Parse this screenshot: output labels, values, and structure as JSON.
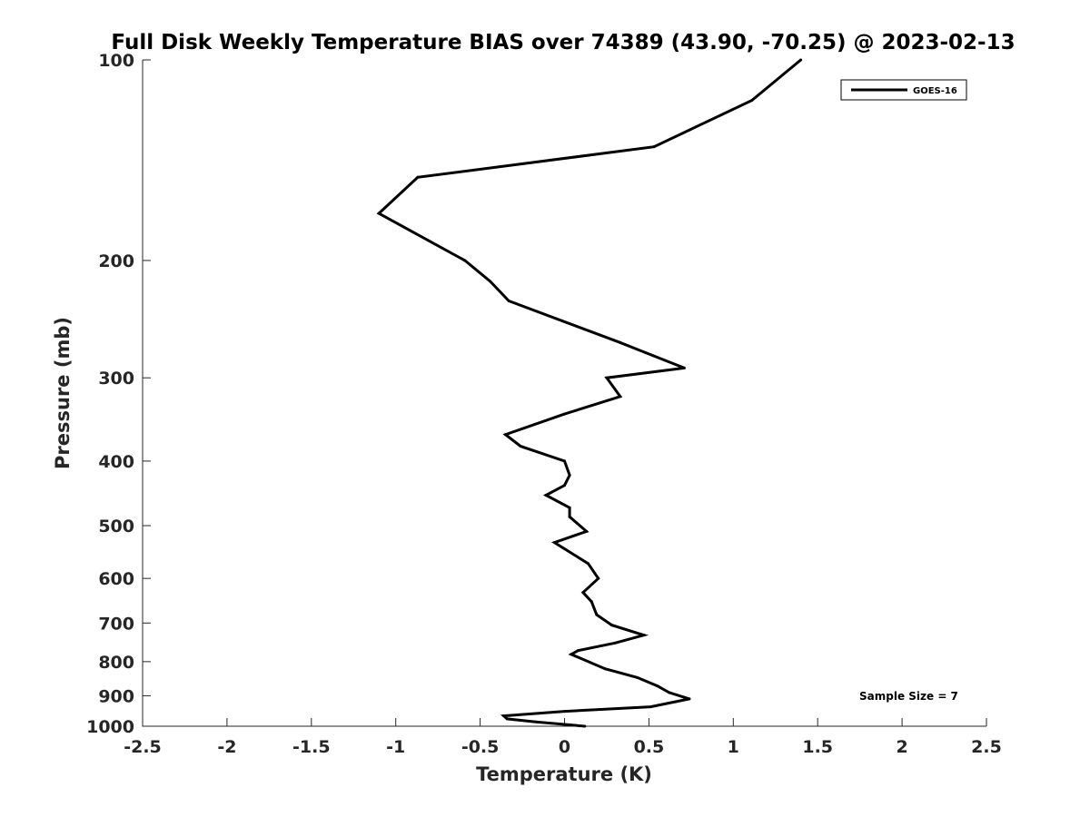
{
  "chart_data": {
    "type": "line",
    "title": "Full Disk Weekly Temperature BIAS over 74389 (43.90, -70.25) @ 2023-02-13",
    "xlabel": "Temperature (K)",
    "ylabel": "Pressure (mb)",
    "xlim": [
      -2.5,
      2.5
    ],
    "ylim": [
      100,
      1000
    ],
    "y_scale": "log",
    "y_reversed": true,
    "xticks": [
      -2.5,
      -2,
      -1.5,
      -1,
      -0.5,
      0,
      0.5,
      1,
      1.5,
      2,
      2.5
    ],
    "xtick_labels": [
      "-2.5",
      "-2",
      "-1.5",
      "-1",
      "-0.5",
      "0",
      "0.5",
      "1",
      "1.5",
      "2",
      "2.5"
    ],
    "yticks": [
      100,
      200,
      300,
      400,
      500,
      600,
      700,
      800,
      900,
      1000
    ],
    "ytick_labels": [
      "100",
      "200",
      "300",
      "400",
      "500",
      "600",
      "700",
      "800",
      "900",
      "1000"
    ],
    "grid": false,
    "legend_position": "top-right",
    "annotation": "Sample Size = 7",
    "series": [
      {
        "name": "GOES-16",
        "color": "#000000",
        "points": [
          {
            "x": 1.4,
            "p": 100
          },
          {
            "x": 1.11,
            "p": 115
          },
          {
            "x": 0.53,
            "p": 135
          },
          {
            "x": -0.87,
            "p": 150
          },
          {
            "x": -1.1,
            "p": 170
          },
          {
            "x": -0.59,
            "p": 200
          },
          {
            "x": -0.44,
            "p": 215
          },
          {
            "x": -0.33,
            "p": 230
          },
          {
            "x": 0.32,
            "p": 265
          },
          {
            "x": 0.71,
            "p": 290
          },
          {
            "x": 0.25,
            "p": 300
          },
          {
            "x": 0.33,
            "p": 320
          },
          {
            "x": 0.0,
            "p": 340
          },
          {
            "x": -0.35,
            "p": 365
          },
          {
            "x": -0.26,
            "p": 380
          },
          {
            "x": 0.0,
            "p": 400
          },
          {
            "x": 0.03,
            "p": 420
          },
          {
            "x": 0.0,
            "p": 435
          },
          {
            "x": -0.11,
            "p": 450
          },
          {
            "x": 0.03,
            "p": 470
          },
          {
            "x": 0.03,
            "p": 485
          },
          {
            "x": 0.13,
            "p": 510
          },
          {
            "x": -0.06,
            "p": 530
          },
          {
            "x": 0.14,
            "p": 570
          },
          {
            "x": 0.2,
            "p": 600
          },
          {
            "x": 0.11,
            "p": 630
          },
          {
            "x": 0.16,
            "p": 650
          },
          {
            "x": 0.19,
            "p": 680
          },
          {
            "x": 0.28,
            "p": 705
          },
          {
            "x": 0.47,
            "p": 730
          },
          {
            "x": 0.3,
            "p": 750
          },
          {
            "x": 0.08,
            "p": 770
          },
          {
            "x": 0.04,
            "p": 780
          },
          {
            "x": 0.24,
            "p": 820
          },
          {
            "x": 0.43,
            "p": 845
          },
          {
            "x": 0.55,
            "p": 870
          },
          {
            "x": 0.62,
            "p": 890
          },
          {
            "x": 0.74,
            "p": 910
          },
          {
            "x": 0.51,
            "p": 935
          },
          {
            "x": 0.0,
            "p": 950
          },
          {
            "x": -0.36,
            "p": 965
          },
          {
            "x": -0.34,
            "p": 975
          },
          {
            "x": -0.17,
            "p": 985
          },
          {
            "x": 0.12,
            "p": 1000
          }
        ]
      }
    ]
  }
}
